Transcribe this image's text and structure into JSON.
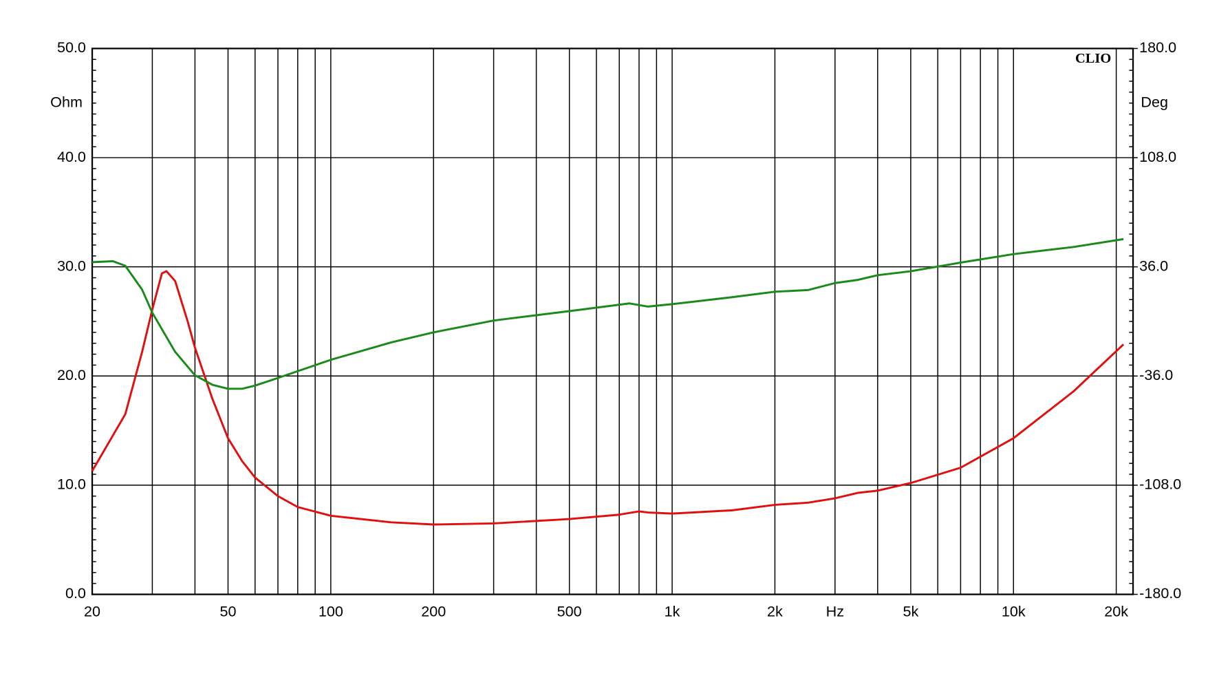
{
  "chart_data": {
    "type": "line",
    "annotation": "CLIO",
    "ylabel": "Ohm",
    "y2label": "Deg",
    "xscale": "log",
    "grid": true,
    "xlim": [
      20,
      22400
    ],
    "xticks": [
      {
        "value": 20,
        "label": "20"
      },
      {
        "value": 50,
        "label": "50"
      },
      {
        "value": 100,
        "label": "100"
      },
      {
        "value": 200,
        "label": "200"
      },
      {
        "value": 500,
        "label": "500"
      },
      {
        "value": 1000,
        "label": "1k"
      },
      {
        "value": 2000,
        "label": "2k"
      },
      {
        "value": 3000,
        "label": "Hz"
      },
      {
        "value": 5000,
        "label": "5k"
      },
      {
        "value": 10000,
        "label": "10k"
      },
      {
        "value": 20000,
        "label": "20k"
      }
    ],
    "xgrid_minor": [
      30,
      40,
      60,
      70,
      80,
      90,
      300,
      400,
      600,
      700,
      800,
      900,
      4000,
      6000,
      7000,
      8000,
      9000
    ],
    "ylim": [
      0,
      50
    ],
    "yticks": [
      {
        "value": 0,
        "label": "0.0"
      },
      {
        "value": 10,
        "label": "10.0"
      },
      {
        "value": 20,
        "label": "20.0"
      },
      {
        "value": 30,
        "label": "30.0"
      },
      {
        "value": 40,
        "label": "40.0"
      },
      {
        "value": 50,
        "label": "50.0"
      }
    ],
    "y2lim": [
      -180,
      180
    ],
    "y2ticks": [
      {
        "value": -180,
        "label": "-180.0"
      },
      {
        "value": -108,
        "label": "-108.0"
      },
      {
        "value": -36,
        "label": "-36.0"
      },
      {
        "value": 36,
        "label": "36.0"
      },
      {
        "value": 108,
        "label": "108.0"
      },
      {
        "value": 180,
        "label": "180.0"
      }
    ],
    "series": [
      {
        "color": "#e01010",
        "x": [
          20,
          25,
          28,
          30,
          32,
          33,
          35,
          38,
          40,
          45,
          50,
          55,
          60,
          70,
          80,
          100,
          150,
          200,
          300,
          500,
          700,
          800,
          850,
          1000,
          1500,
          2000,
          2500,
          3000,
          3500,
          4000,
          5000,
          7000,
          10000,
          15000,
          21000
        ],
        "values": [
          11.3,
          16.5,
          22.2,
          26.1,
          29.4,
          29.6,
          28.7,
          25.1,
          22.6,
          17.9,
          14.3,
          12.2,
          10.7,
          9.0,
          8.0,
          7.2,
          6.6,
          6.4,
          6.5,
          6.9,
          7.3,
          7.6,
          7.5,
          7.4,
          7.7,
          8.2,
          8.4,
          8.8,
          9.3,
          9.5,
          10.2,
          11.6,
          14.3,
          18.6,
          22.9
        ]
      },
      {
        "color": "#1a8a1a",
        "axis": "y2",
        "x": [
          20,
          23,
          25,
          28,
          30,
          35,
          40,
          45,
          50,
          55,
          60,
          70,
          100,
          150,
          200,
          300,
          500,
          750,
          850,
          1000,
          1500,
          2000,
          2500,
          3000,
          3500,
          4000,
          5000,
          7000,
          10000,
          15000,
          21000
        ],
        "values": [
          39.1,
          39.7,
          36.7,
          21.0,
          5.7,
          -20.1,
          -35.5,
          -41.8,
          -44.4,
          -44.4,
          -42.3,
          -37.3,
          -25.3,
          -13.9,
          -7.2,
          0.6,
          6.8,
          11.9,
          9.8,
          11.4,
          16.0,
          19.6,
          20.7,
          25.3,
          27.4,
          30.5,
          33.1,
          38.8,
          44.4,
          49.1,
          54.3
        ]
      }
    ]
  }
}
